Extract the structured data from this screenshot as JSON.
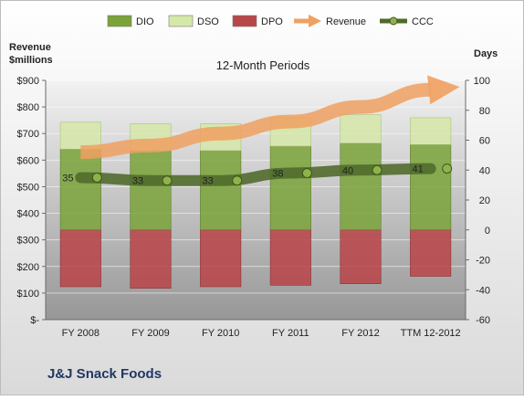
{
  "chart_data": {
    "type": "bar",
    "title": "12-Month Periods",
    "company": "J&J Snack Foods",
    "categories": [
      "FY 2008",
      "FY 2009",
      "FY 2010",
      "FY 2011",
      "FY 2012",
      "TTM 12-2012"
    ],
    "left_axis": {
      "label_line1": "Revenue",
      "label_line2": "$millions",
      "range": [
        0,
        900
      ],
      "ticks": [
        0,
        100,
        200,
        300,
        400,
        500,
        600,
        700,
        800,
        900
      ],
      "tick_labels": [
        "$-",
        "$100",
        "$200",
        "$300",
        "$400",
        "$500",
        "$600",
        "$700",
        "$800",
        "$900"
      ]
    },
    "right_axis": {
      "label": "Days",
      "range": [
        -60,
        100
      ],
      "ticks": [
        -60,
        -40,
        -20,
        0,
        20,
        40,
        60,
        80,
        100
      ],
      "tick_labels": [
        "-60",
        "-40",
        "-20",
        "0",
        "20",
        "40",
        "60",
        "80",
        "100"
      ]
    },
    "legend": {
      "placement": "top",
      "items": [
        {
          "name": "DIO",
          "kind": "bar",
          "color": "#7aa33a"
        },
        {
          "name": "DSO",
          "kind": "bar",
          "color": "#d6e8a8"
        },
        {
          "name": "DPO",
          "kind": "bar",
          "color": "#b8474a"
        },
        {
          "name": "Revenue",
          "kind": "arrow",
          "color": "#f0a060"
        },
        {
          "name": "CCC",
          "kind": "line",
          "color": "#4f6a2a"
        }
      ]
    },
    "series": [
      {
        "name": "DIO",
        "axis": "right",
        "values": [
          54,
          53,
          53,
          56,
          58,
          57
        ]
      },
      {
        "name": "DSO",
        "axis": "right",
        "values": [
          18,
          18,
          18,
          19,
          19,
          18
        ]
      },
      {
        "name": "DPO",
        "axis": "right",
        "values": [
          -38,
          -39,
          -38,
          -37,
          -36,
          -31
        ]
      },
      {
        "name": "CCC",
        "axis": "right",
        "values": [
          35,
          33,
          33,
          38,
          40,
          41
        ]
      },
      {
        "name": "Revenue",
        "axis": "left",
        "values": [
          630,
          655,
          700,
          745,
          800,
          865
        ]
      }
    ],
    "data_labels": {
      "series": "CCC",
      "labels": [
        "35",
        "33",
        "33",
        "38",
        "40",
        "41"
      ]
    },
    "grid": true,
    "colors": {
      "plot_bg_top": "#ececec",
      "plot_bg_bottom": "#9a9a9a",
      "dio": "#7aa33a",
      "dso": "#d6e8a8",
      "dpo": "#b8474a",
      "revenue": "#f0a060",
      "ccc": "#4f6a2a"
    }
  }
}
